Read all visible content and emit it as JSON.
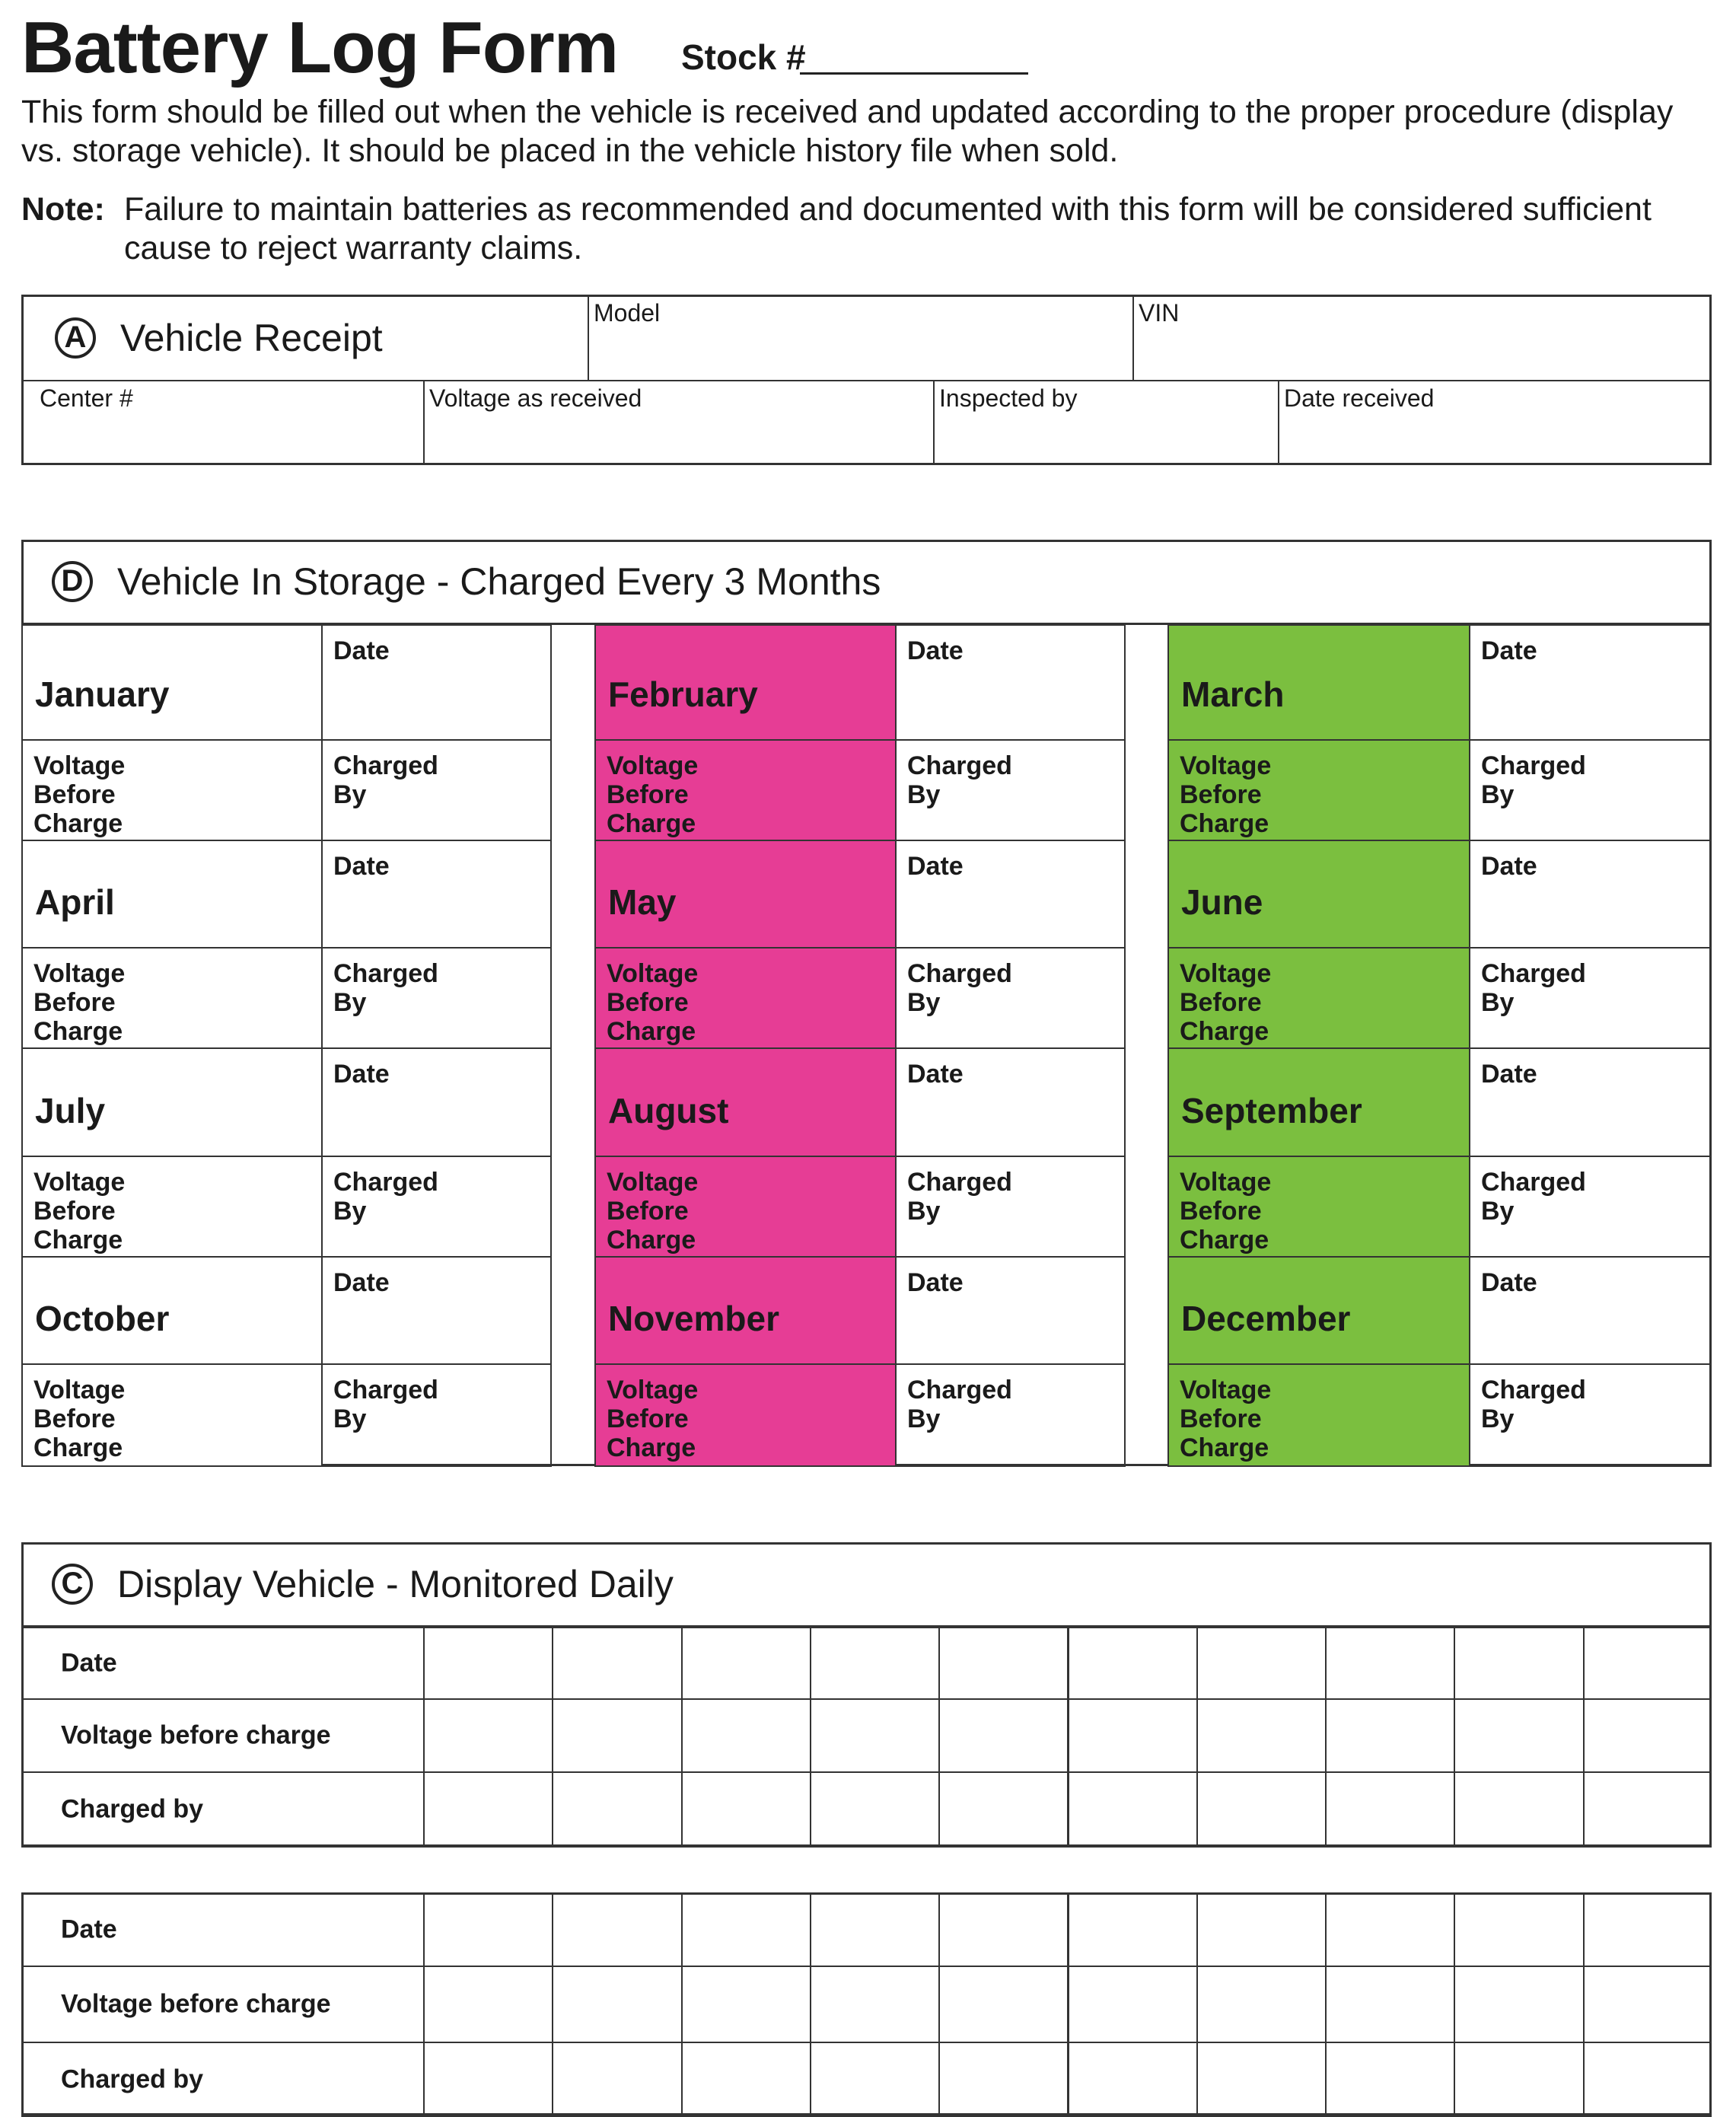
{
  "header": {
    "title": "Battery Log Form",
    "stock_label": "Stock #",
    "intro": "This form should be filled out when the vehicle is received and updated according to the proper procedure (display vs. storage vehicle). It should be placed in the vehicle history file when sold.",
    "note_label": "Note:",
    "note_text": "Failure to maintain batteries as recommended and documented with this form will be considered sufficient cause to reject warranty claims."
  },
  "receipt": {
    "badge": "A",
    "title": "Vehicle Receipt",
    "fields": [
      "Model",
      "VIN",
      "Center #",
      "Voltage as received",
      "Inspected by",
      "Date received"
    ]
  },
  "storage": {
    "badge": "D",
    "title": "Vehicle In Storage - Charged Every 3 Months",
    "date_label": "Date",
    "voltage_label": "Voltage Before Charge",
    "charged_label": "Charged By",
    "months": [
      "January",
      "February",
      "March",
      "April",
      "May",
      "June",
      "July",
      "August",
      "September",
      "October",
      "November",
      "December"
    ],
    "column_colors": [
      "#ffffff",
      "#e63d95",
      "#7bbf3f"
    ]
  },
  "display": {
    "badge": "C",
    "title": "Display Vehicle - Monitored Daily",
    "row_labels": [
      "Date",
      "Voltage before charge",
      "Charged by"
    ],
    "tables": [
      {
        "row_labels": [
          "Date",
          "Voltage before charge",
          "Charged by"
        ]
      },
      {
        "row_labels": [
          "Date",
          "Voltage before charge",
          "Charged by"
        ]
      }
    ]
  }
}
